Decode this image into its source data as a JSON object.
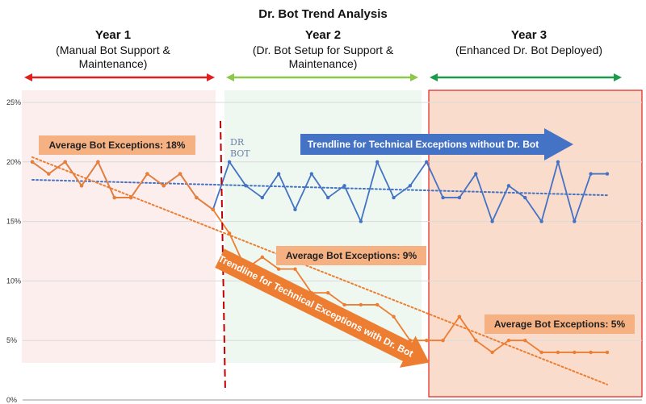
{
  "chart_data": {
    "type": "line",
    "title": "Dr. Bot Trend Analysis",
    "xlabel": "",
    "ylabel": "",
    "ylim": [
      0,
      25
    ],
    "y_ticks": [
      "0%",
      "5%",
      "10%",
      "15%",
      "20%",
      "25%"
    ],
    "grid": true,
    "periods": [
      {
        "title": "Year 1",
        "subtitle": [
          "(Manual Bot Support &",
          "Maintenance)"
        ],
        "color": "#e02020",
        "bg": "#fdeeee",
        "start": 0,
        "end": 11
      },
      {
        "title": "Year 2",
        "subtitle": [
          "(Dr. Bot Setup for Support &",
          "Maintenance)"
        ],
        "color": "#8cc84b",
        "bg": "#eef8f0",
        "start": 12,
        "end": 23
      },
      {
        "title": "Year 3",
        "subtitle": [
          "(Enhanced Dr. Bot Deployed)"
        ],
        "color": "#1a9c4a",
        "bg": "#f9dccc",
        "start": 24,
        "end": 35
      }
    ],
    "series": [
      {
        "color": "#4472c4",
        "values": [
          20,
          19,
          20,
          18,
          20,
          17,
          17,
          19,
          18,
          19,
          17,
          16,
          20,
          18,
          17,
          19,
          16,
          19,
          17,
          18,
          15,
          20,
          17,
          18,
          20,
          17,
          17,
          19,
          15,
          18,
          17,
          15,
          20,
          15,
          19,
          19
        ]
      },
      {
        "color": "#ed7d31",
        "values": [
          20,
          19,
          20,
          18,
          20,
          17,
          17,
          19,
          18,
          19,
          17,
          16,
          14,
          11,
          12,
          11,
          11,
          9,
          9,
          8,
          8,
          8,
          7,
          5,
          5,
          5,
          7,
          5,
          4,
          5,
          5,
          4,
          4,
          4,
          4,
          4
        ]
      }
    ],
    "trendlines": [
      {
        "color": "#4472c4",
        "from": 18.5,
        "to": 17.2
      },
      {
        "color": "#ed7d31",
        "from": 20.4,
        "to": 1.3
      }
    ],
    "annotations": {
      "dr_bot_marker": {
        "index": 11.6,
        "color": "#c00000"
      },
      "avg_labels": [
        {
          "text": "Average Bot Exceptions: 18%"
        },
        {
          "text": "Average Bot Exceptions: 9%"
        },
        {
          "text": "Average Bot Exceptions: 5%"
        }
      ],
      "trend_arrows": [
        {
          "text": "Trendline for Technical Exceptions without Dr. Bot",
          "color": "#4472c4"
        },
        {
          "text": "Trendline for Technical Exceptions with Dr. Bot",
          "color": "#ed7d31"
        }
      ],
      "logo": [
        "DR",
        "BOT"
      ]
    }
  }
}
